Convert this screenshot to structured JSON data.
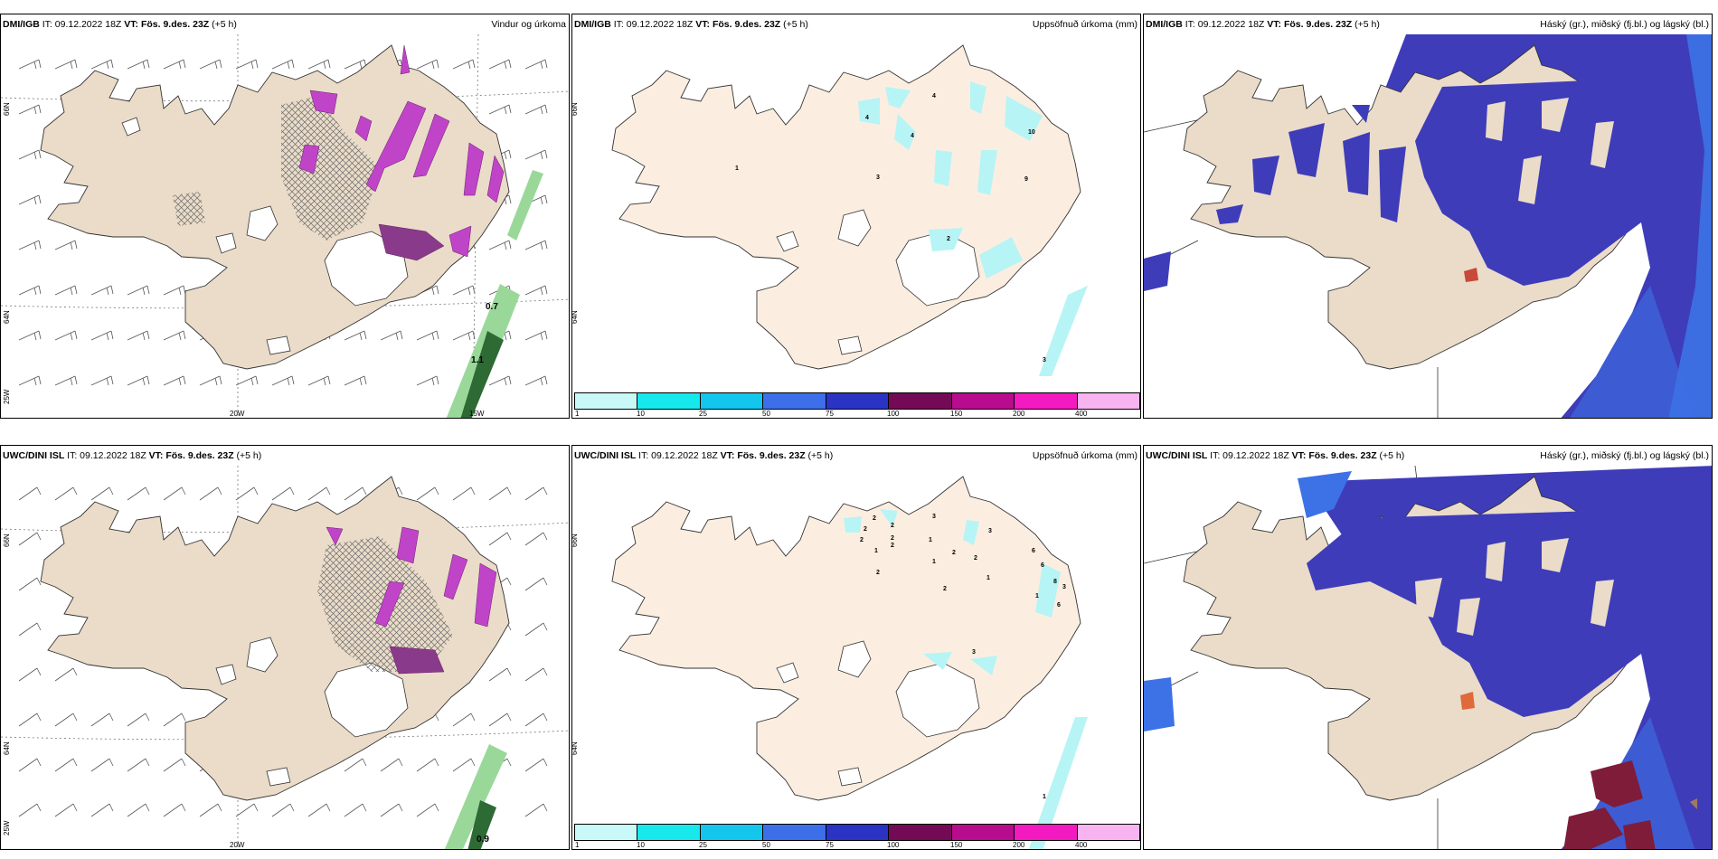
{
  "rows": [
    {
      "model": "DMI/IGB",
      "init": "IT: 09.12.2022 18Z",
      "vt_label": "VT:",
      "vt_value": "Fös. 9.des. 23Z",
      "lead": "(+5 h)"
    },
    {
      "model": "UWC/DINI ISL",
      "init": "IT: 09.12.2022 18Z",
      "vt_label": "VT:",
      "vt_value": "Fös. 9.des. 23Z",
      "lead": "(+5 h)"
    }
  ],
  "panel_titles": {
    "wind": "Vindur og úrkoma",
    "precip": "Uppsöfnuð úrkoma (mm)",
    "cloud": "Háský (gr.), miðský (fj.bl.) og lágský (bl.)"
  },
  "grid_labels": {
    "lat66": "66N",
    "lat64": "64N",
    "lon25": "25W",
    "lon20": "20W",
    "lon15": "15W"
  },
  "wind_values": {
    "top": [
      "0.7",
      "1.1"
    ],
    "bottom": [
      "0.9"
    ]
  },
  "precip_labels": {
    "top": [
      "4",
      "4",
      "1",
      "4",
      "10",
      "3",
      "9",
      "2",
      "3"
    ],
    "bottom": [
      "2",
      "2",
      "2",
      "3",
      "2",
      "1",
      "2",
      "3",
      "2",
      "1",
      "2",
      "6",
      "1",
      "2",
      "6",
      "1",
      "8",
      "3",
      "2",
      "2",
      "1",
      "3",
      "6",
      "1"
    ]
  },
  "colorbar": {
    "ticks": [
      "1",
      "10",
      "25",
      "50",
      "75",
      "100",
      "150",
      "200",
      "400"
    ],
    "colors": [
      "#c9f8f8",
      "#17e8ec",
      "#12c6ee",
      "#3d6fe8",
      "#2b33c4",
      "#740a56",
      "#b80c8e",
      "#f21ac0",
      "#f7b4f0"
    ]
  },
  "colors": {
    "land": "#eadcc9",
    "land_precip": "#fbeee0",
    "precip_light": "#b7f4f6",
    "cloud_high": "#3f3cb9",
    "cloud_mid": "#3c72e6",
    "cloud_low": "#7e1c3a",
    "wind_rain": "#3a8a3a",
    "wind_snow": "#c044c8"
  }
}
